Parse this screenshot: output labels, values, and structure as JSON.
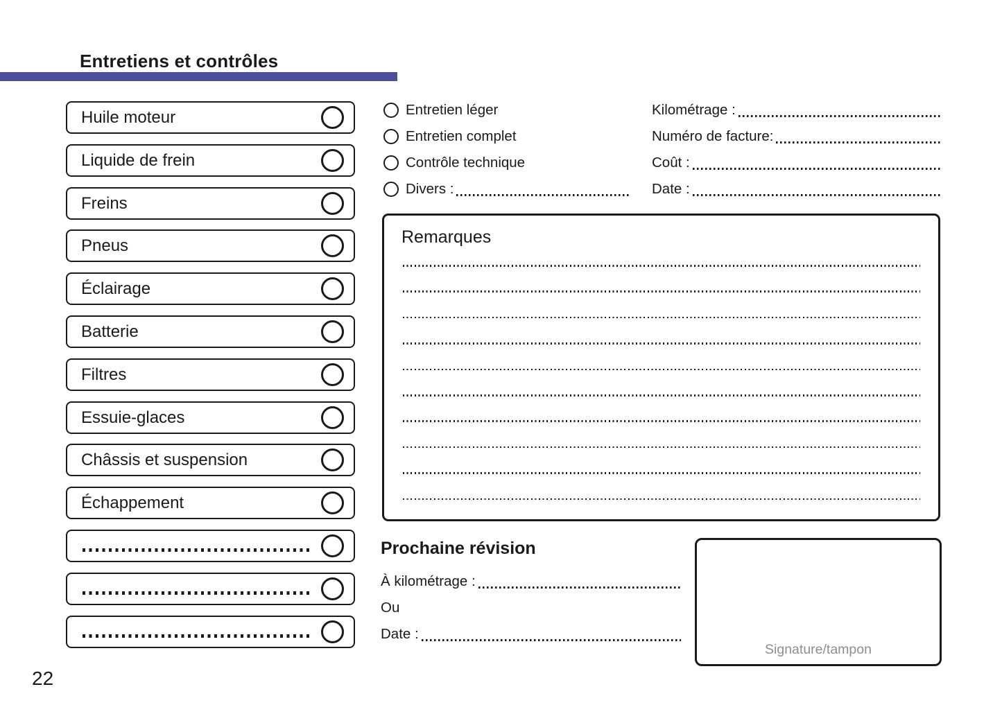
{
  "page": {
    "title": "Entretiens et contrôles",
    "number": "22",
    "accent_color": "#4a4f9b",
    "text_color": "#1a1a1a",
    "signature_label": "Signature/tampon"
  },
  "checklist": {
    "items": [
      "Huile moteur",
      "Liquide de frein",
      "Freins",
      "Pneus",
      "Éclairage",
      "Batterie",
      "Filtres",
      "Essuie-glaces",
      "Châssis et suspension",
      "Échappement"
    ],
    "blank_rows": 3
  },
  "service_type": {
    "options": [
      "Entretien léger",
      "Entretien complet",
      "Contrôle technique",
      "Divers :"
    ]
  },
  "record_fields": [
    "Kilométrage :",
    "Numéro de facture:",
    "Coût :",
    "Date :"
  ],
  "remarks": {
    "title": "Remarques",
    "line_count": 10
  },
  "next_service": {
    "title": "Prochaine révision",
    "mileage_label": "À kilométrage :",
    "or_label": "Ou",
    "date_label": "Date :"
  }
}
